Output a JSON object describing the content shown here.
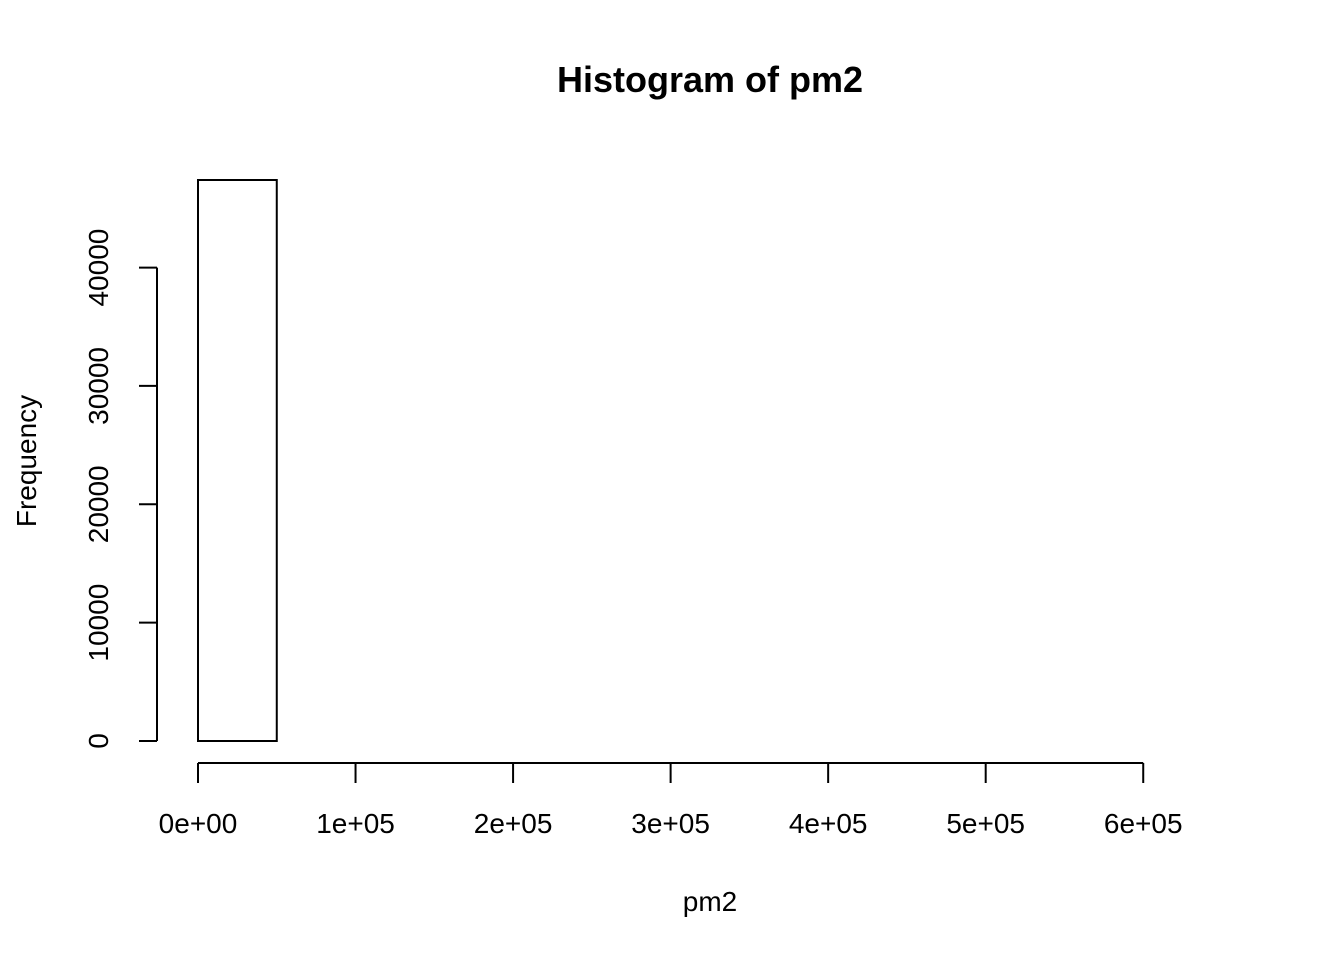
{
  "chart_data": {
    "type": "bar",
    "subtype": "histogram",
    "title": "Histogram of pm2",
    "xlabel": "pm2",
    "ylabel": "Frequency",
    "bin_width": 50000,
    "bins": [
      {
        "start": 0,
        "end": 50000,
        "count": 47400
      },
      {
        "start": 50000,
        "end": 100000,
        "count": 0
      },
      {
        "start": 100000,
        "end": 150000,
        "count": 0
      },
      {
        "start": 150000,
        "end": 200000,
        "count": 0
      },
      {
        "start": 200000,
        "end": 250000,
        "count": 0
      },
      {
        "start": 250000,
        "end": 300000,
        "count": 0
      },
      {
        "start": 300000,
        "end": 350000,
        "count": 0
      },
      {
        "start": 350000,
        "end": 400000,
        "count": 0
      },
      {
        "start": 400000,
        "end": 450000,
        "count": 0
      },
      {
        "start": 450000,
        "end": 500000,
        "count": 0
      },
      {
        "start": 500000,
        "end": 550000,
        "count": 0
      },
      {
        "start": 550000,
        "end": 600000,
        "count": 0
      },
      {
        "start": 600000,
        "end": 650000,
        "count": 0
      }
    ],
    "xlim": [
      0,
      650000
    ],
    "ylim": [
      0,
      47400
    ],
    "x_ticks": [
      {
        "value": 0,
        "label": "0e+00"
      },
      {
        "value": 100000,
        "label": "1e+05"
      },
      {
        "value": 200000,
        "label": "2e+05"
      },
      {
        "value": 300000,
        "label": "3e+05"
      },
      {
        "value": 400000,
        "label": "4e+05"
      },
      {
        "value": 500000,
        "label": "5e+05"
      },
      {
        "value": 600000,
        "label": "6e+05"
      }
    ],
    "y_ticks": [
      {
        "value": 0,
        "label": "0"
      },
      {
        "value": 10000,
        "label": "10000"
      },
      {
        "value": 20000,
        "label": "20000"
      },
      {
        "value": 30000,
        "label": "30000"
      },
      {
        "value": 40000,
        "label": "40000"
      }
    ],
    "grid": false,
    "legend": "none",
    "colors": {
      "bar_fill": "#ffffff",
      "bar_stroke": "#000000"
    }
  }
}
